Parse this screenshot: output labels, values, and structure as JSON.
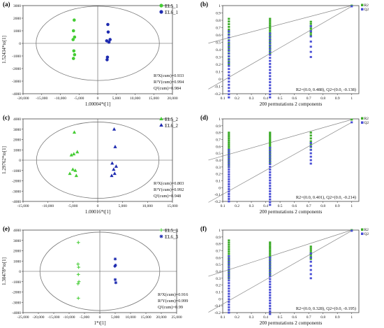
{
  "chart_data": [
    {
      "panel": "(a)",
      "type": "scatter",
      "xlabel": "1.00004*t[1]",
      "ylabel": "1.52434*to[1]",
      "xlim": [
        -20000,
        20000
      ],
      "ylim": [
        -4000,
        3000
      ],
      "xticks": [
        -20000,
        -15000,
        -10000,
        -5000,
        0,
        5000,
        10000,
        15000,
        20000
      ],
      "xtick_labels": [
        "-20,000",
        "-15,000",
        "-10,000",
        "-5,000",
        "0",
        "5,000",
        "10,000",
        "15,000",
        "20,000"
      ],
      "yticks": [
        -4000,
        -3000,
        -2000,
        -1000,
        0,
        1000,
        2000,
        3000
      ],
      "ytick_labels": [
        "-4000",
        "-3000",
        "-2000",
        "-1000",
        "0",
        "1000",
        "2000",
        "3000"
      ],
      "ellipse": {
        "rx": 16500,
        "ry": 2950
      },
      "series": [
        {
          "name": "EL5_1",
          "color": "#44cc33",
          "marker": "circle",
          "points": [
            [
              -6300,
              1850
            ],
            [
              -6500,
              1000
            ],
            [
              -6200,
              500
            ],
            [
              -6600,
              300
            ],
            [
              -6400,
              -600
            ],
            [
              -6200,
              -900
            ],
            [
              -6500,
              -1200
            ]
          ]
        },
        {
          "name": "EL6_1",
          "color": "#1f2cb0",
          "marker": "circle",
          "points": [
            [
              2700,
              1500
            ],
            [
              2800,
              900
            ],
            [
              3300,
              300
            ],
            [
              2400,
              200
            ],
            [
              3000,
              100
            ],
            [
              2600,
              -1100
            ],
            [
              2500,
              -1300
            ]
          ]
        }
      ],
      "stats": [
        "R²X(cum)=0.933",
        "R²Y(cum)=0.994",
        "Q²(cum)=0.984"
      ]
    },
    {
      "panel": "(b)",
      "type": "scatter",
      "xlabel": "200 permutations 2 components",
      "xlim": [
        0.1,
        1.05
      ],
      "ylim": [
        -0.2,
        1
      ],
      "xticks": [
        0.1,
        0.2,
        0.3,
        0.4,
        0.5,
        0.6,
        0.7,
        0.8,
        0.9,
        1
      ],
      "xtick_labels": [
        "0.1",
        "0.2",
        "0.3",
        "0.4",
        "0.5",
        "0.6",
        "0.7",
        "0.8",
        "0.9",
        "1"
      ],
      "yticks": [
        -0.2,
        -0.1,
        0,
        0.1,
        0.2,
        0.3,
        0.4,
        0.5,
        0.6,
        0.7,
        0.8,
        0.9,
        1
      ],
      "ytick_labels": [
        "-0.2",
        "-0.1",
        "0",
        "0.1",
        "0.2",
        "0.3",
        "0.4",
        "0.5",
        "0.6",
        "0.7",
        "0.8",
        "0.9",
        "1"
      ],
      "r2_intercept": 0.488,
      "q2_intercept": -0.138,
      "series": [
        {
          "name": "R2",
          "color": "#3dab2a",
          "x_groups": [
            0.143,
            0.43,
            0.715
          ],
          "ranges": [
            [
              0.2,
              0.82
            ],
            [
              0.35,
              0.82
            ],
            [
              0.6,
              0.78
            ]
          ],
          "final": [
            1,
            1
          ]
        },
        {
          "name": "Q2",
          "color": "#4a4fd6",
          "x_groups": [
            0.143,
            0.43,
            0.715
          ],
          "ranges": [
            [
              -0.25,
              0.65
            ],
            [
              -0.25,
              0.62
            ],
            [
              0.3,
              0.72
            ]
          ],
          "final": [
            1,
            0.99
          ]
        }
      ],
      "stats": [
        "R2=(0.0, 0.488), Q2=(0.0, -0.138)"
      ]
    },
    {
      "panel": "(c)",
      "type": "scatter",
      "xlabel": "1.00016*t[1]",
      "ylabel": "1.29762*to[1]",
      "xlim": [
        -15000,
        15000
      ],
      "ylim": [
        -4000,
        4000
      ],
      "xticks": [
        -15000,
        -10000,
        -5000,
        0,
        5000,
        10000,
        15000
      ],
      "xtick_labels": [
        "-15,000",
        "-10,000",
        "-5,000",
        "0",
        "5,000",
        "10,000",
        "15,000"
      ],
      "yticks": [
        -4000,
        -3000,
        -2000,
        -1000,
        0,
        1000,
        2000,
        3000,
        4000
      ],
      "ytick_labels": [
        "-4000",
        "-3000",
        "-2000",
        "-1000",
        "0",
        "1000",
        "2000",
        "3000",
        "4000"
      ],
      "ellipse": {
        "rx": 12300,
        "ry": 3700
      },
      "series": [
        {
          "name": "EL5_2",
          "color": "#44cc33",
          "marker": "triangle-up",
          "points": [
            [
              -4700,
              2700
            ],
            [
              -5300,
              500
            ],
            [
              -4800,
              600
            ],
            [
              -4100,
              800
            ],
            [
              -5000,
              -900
            ],
            [
              -4500,
              -1000
            ],
            [
              -5600,
              -1300
            ],
            [
              -4300,
              -1500
            ]
          ]
        },
        {
          "name": "EL6_2",
          "color": "#1f2cb0",
          "marker": "triangle-up",
          "points": [
            [
              3300,
              3000
            ],
            [
              3500,
              1300
            ],
            [
              2900,
              -300
            ],
            [
              3200,
              -900
            ],
            [
              3700,
              -600
            ],
            [
              3400,
              -1300
            ],
            [
              2800,
              -1500
            ]
          ]
        }
      ],
      "stats": [
        "R²X(cum)=0.803",
        "R²Y(cum)=0.992",
        "Q²(cum)=0.948"
      ]
    },
    {
      "panel": "(d)",
      "type": "scatter",
      "xlabel": "200 permutations 2 components",
      "xlim": [
        0.1,
        1.05
      ],
      "ylim": [
        -0.2,
        1
      ],
      "xticks": [
        0.1,
        0.2,
        0.3,
        0.4,
        0.5,
        0.6,
        0.7,
        0.8,
        0.9,
        1
      ],
      "xtick_labels": [
        "0.1",
        "0.2",
        "0.3",
        "0.4",
        "0.5",
        "0.6",
        "0.7",
        "0.8",
        "0.9",
        "1"
      ],
      "yticks": [
        -0.2,
        -0.1,
        0,
        0.1,
        0.2,
        0.3,
        0.4,
        0.5,
        0.6,
        0.7,
        0.8,
        0.9,
        1
      ],
      "ytick_labels": [
        "-0.2",
        "-0.1",
        "0",
        "0.1",
        "0.2",
        "0.3",
        "0.4",
        "0.5",
        "0.6",
        "0.7",
        "0.8",
        "0.9",
        "1"
      ],
      "r2_intercept": 0.401,
      "q2_intercept": -0.214,
      "series": [
        {
          "name": "R2",
          "color": "#3dab2a",
          "x_groups": [
            0.143,
            0.43,
            0.715
          ],
          "ranges": [
            [
              0.3,
              0.8
            ],
            [
              0.35,
              0.8
            ],
            [
              0.55,
              0.8
            ]
          ],
          "final": [
            1,
            0.99
          ]
        },
        {
          "name": "Q2",
          "color": "#4a4fd6",
          "x_groups": [
            0.143,
            0.43,
            0.715
          ],
          "ranges": [
            [
              -0.2,
              0.55
            ],
            [
              -0.25,
              0.58
            ],
            [
              0.35,
              0.65
            ]
          ],
          "final": [
            1,
            0.95
          ]
        }
      ],
      "stats": [
        "R2=(0.0, 0.401), Q2=(0.0, -0.214)"
      ]
    },
    {
      "panel": "(e)",
      "type": "scatter",
      "xlabel": "1*t[1]",
      "ylabel": "1.30478*to[1]",
      "xlim": [
        -25000,
        25000
      ],
      "ylim": [
        -4000,
        4000
      ],
      "xticks": [
        -25000,
        -20000,
        -15000,
        -10000,
        -5000,
        0,
        5000,
        10000,
        15000,
        20000,
        25000
      ],
      "xtick_labels": [
        "-25,000",
        "-20,000",
        "-15,000",
        "-10,000",
        "-5,000",
        "0",
        "5,000",
        "10,000",
        "15,000",
        "20,000",
        "25,000"
      ],
      "yticks": [
        -4000,
        -3000,
        -2000,
        -1000,
        0,
        1000,
        2000,
        3000,
        4000
      ],
      "ytick_labels": [
        "-4000",
        "-3000",
        "-2000",
        "-1000",
        "0",
        "1000",
        "2000",
        "3000",
        "4000"
      ],
      "ellipse": {
        "rx": 19500,
        "ry": 3800
      },
      "series": [
        {
          "name": "EL5_3",
          "color": "#44cc33",
          "marker": "plus",
          "points": [
            [
              -7000,
              2800
            ],
            [
              -7100,
              700
            ],
            [
              -6900,
              400
            ],
            [
              -7000,
              -300
            ],
            [
              -6800,
              -1000
            ],
            [
              -7100,
              -1200
            ],
            [
              -7000,
              -2600
            ]
          ]
        },
        {
          "name": "EL6_3",
          "color": "#1f2cb0",
          "marker": "star",
          "points": [
            [
              5000,
              1200
            ],
            [
              5100,
              600
            ],
            [
              4900,
              500
            ],
            [
              5000,
              -800
            ],
            [
              5200,
              -1100
            ]
          ]
        }
      ],
      "stats": [
        "R²X(cum)=0.916",
        "R²Y(cum)=0.999",
        "Q²(cum)=0.99"
      ]
    },
    {
      "panel": "(f)",
      "type": "scatter",
      "xlabel": "200 permutations 2 components",
      "xlim": [
        0.1,
        1.05
      ],
      "ylim": [
        -0.2,
        1
      ],
      "xticks": [
        0.1,
        0.2,
        0.3,
        0.4,
        0.5,
        0.6,
        0.7,
        0.8,
        0.9,
        1
      ],
      "xtick_labels": [
        "0.1",
        "0.2",
        "0.3",
        "0.4",
        "0.5",
        "0.6",
        "0.7",
        "0.8",
        "0.9",
        "1"
      ],
      "yticks": [
        -0.2,
        -0.1,
        0,
        0.1,
        0.2,
        0.3,
        0.4,
        0.5,
        0.6,
        0.7,
        0.8,
        0.9,
        1
      ],
      "ytick_labels": [
        "-0.2",
        "-0.1",
        "0",
        "0.1",
        "0.2",
        "0.3",
        "0.4",
        "0.5",
        "0.6",
        "0.7",
        "0.8",
        "0.9",
        "1"
      ],
      "r2_intercept": 0.328,
      "q2_intercept": -0.195,
      "series": [
        {
          "name": "R2",
          "color": "#3dab2a",
          "x_groups": [
            0.143,
            0.43,
            0.715
          ],
          "ranges": [
            [
              0.3,
              0.85
            ],
            [
              0.35,
              0.82
            ],
            [
              0.58,
              0.76
            ]
          ],
          "final": [
            1,
            1
          ]
        },
        {
          "name": "Q2",
          "color": "#4a4fd6",
          "x_groups": [
            0.143,
            0.43,
            0.715
          ],
          "ranges": [
            [
              -0.2,
              0.62
            ],
            [
              -0.22,
              0.6
            ],
            [
              0.3,
              0.66
            ]
          ],
          "final": [
            1,
            0.99
          ]
        }
      ],
      "stats": [
        "R2=(0.0, 0.328), Q2=(0.0, -0.195)"
      ]
    }
  ]
}
